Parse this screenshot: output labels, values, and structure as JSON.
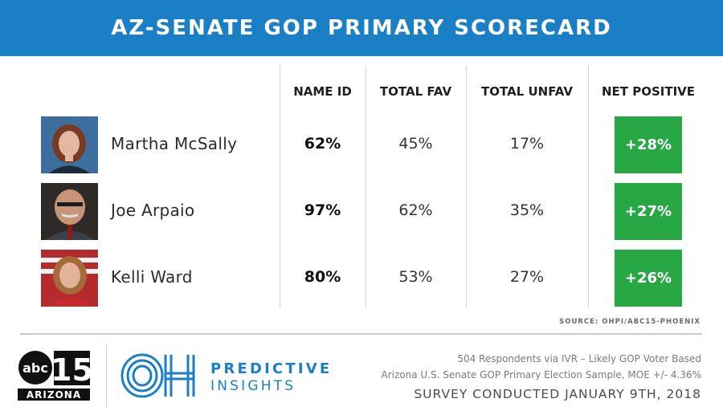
{
  "title": "AZ-SENATE GOP PRIMARY SCORECARD",
  "colors": {
    "banner": "#1a7fc4",
    "net_positive": "#27a844",
    "brand_blue": "#1a7fc4"
  },
  "chart_data": {
    "type": "table",
    "columns": [
      "NAME ID",
      "TOTAL FAV",
      "TOTAL UNFAV",
      "NET POSITIVE"
    ],
    "rows": [
      {
        "name": "Martha McSally",
        "name_id": "62%",
        "total_fav": "45%",
        "total_unfav": "17%",
        "net_positive": "+28%"
      },
      {
        "name": "Joe Arpaio",
        "name_id": "97%",
        "total_fav": "62%",
        "total_unfav": "35%",
        "net_positive": "+27%"
      },
      {
        "name": "Kelli Ward",
        "name_id": "80%",
        "total_fav": "53%",
        "total_unfav": "27%",
        "net_positive": "+26%"
      }
    ]
  },
  "source": "SOURCE: OHPI/ABC15-PHOENIX",
  "logos": {
    "abc15": {
      "network": "abc",
      "channel": "15",
      "region": "ARIZONA"
    },
    "ohpi": {
      "mark": "OH",
      "line1": "PREDICTIVE",
      "line2": "INSIGHTS"
    }
  },
  "notes": {
    "line1": "504 Respondents via IVR – Likely GOP Voter Based",
    "line2": "Arizona U.S. Senate GOP Primary Election Sample, MOE +/- 4.36%",
    "line3": "SURVEY CONDUCTED JANUARY 9TH, 2018"
  }
}
